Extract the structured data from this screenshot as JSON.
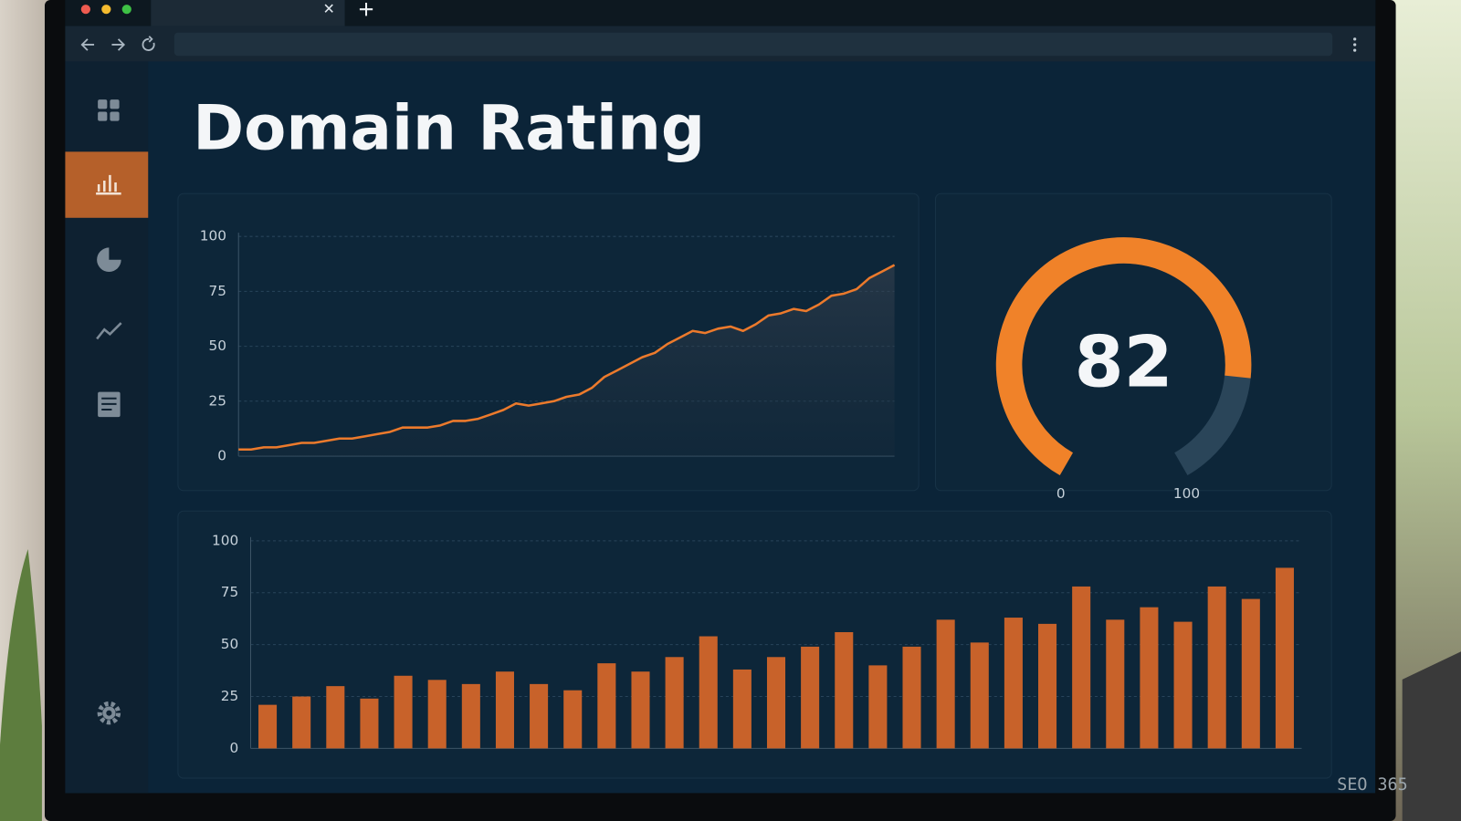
{
  "header": {
    "title": "Domain Rating"
  },
  "line_chart": {
    "type": "line",
    "color": "#ec7a2c",
    "values": [
      3,
      3,
      4,
      4,
      5,
      6,
      6,
      7,
      8,
      8,
      9,
      10,
      11,
      13,
      13,
      13,
      14,
      16,
      16,
      17,
      19,
      21,
      24,
      23,
      24,
      25,
      27,
      28,
      31,
      36,
      39,
      42,
      45,
      47,
      51,
      54,
      57,
      56,
      58,
      59,
      57,
      60,
      64,
      65,
      67,
      66,
      69,
      73,
      74,
      76,
      81,
      84,
      87
    ],
    "ylim": [
      0,
      100
    ],
    "yticks": [
      0,
      25,
      50,
      75,
      100
    ],
    "grid": true
  },
  "gauge": {
    "type": "gauge",
    "value": 82,
    "lim": [
      0,
      100
    ],
    "ticks": [
      0,
      100
    ],
    "color": "#f08229",
    "track_color": "#2a4559"
  },
  "bar_chart": {
    "type": "bar",
    "color": "#c8622a",
    "values": [
      21,
      25,
      30,
      24,
      35,
      33,
      31,
      37,
      31,
      28,
      41,
      37,
      44,
      54,
      38,
      44,
      49,
      56,
      40,
      49,
      62,
      51,
      63,
      60,
      78,
      62,
      68,
      61,
      78,
      72,
      87
    ],
    "ylim": [
      0,
      100
    ],
    "yticks": [
      0,
      25,
      50,
      75,
      100
    ],
    "grid": true
  },
  "watermark": "SEO 365"
}
